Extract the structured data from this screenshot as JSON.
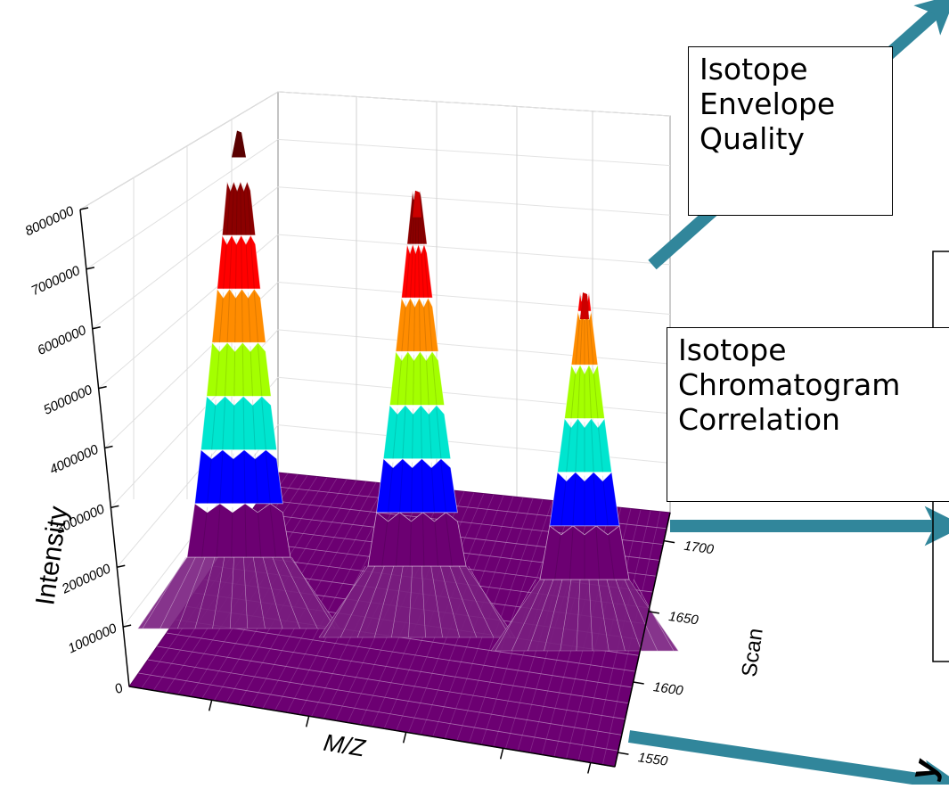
{
  "chart_data": {
    "type": "surface",
    "title": "",
    "xlabel": "M/Z",
    "ylabel": "Scan",
    "zlabel": "Intensity",
    "z_ticks": [
      "0",
      "1000000",
      "2000000",
      "3000000",
      "4000000",
      "5000000",
      "6000000",
      "7000000",
      "8000000"
    ],
    "z_range": [
      0,
      8000000
    ],
    "scan_ticks": [
      "1550",
      "1600",
      "1650",
      "1700"
    ],
    "scan_range": [
      1540,
      1720
    ],
    "grid": true,
    "colormap": [
      "#6c0072",
      "#0000ff",
      "#00e5cf",
      "#a4ff00",
      "#ff8c00",
      "#ff0000",
      "#8b0000"
    ],
    "series": [
      {
        "peak_intensity": 7950000
      },
      {
        "peak_intensity": 7000000
      },
      {
        "peak_intensity": 5350000
      }
    ]
  },
  "callouts": {
    "envelope": {
      "line1": "Isotope",
      "line2": "Envelope",
      "line3": "Quality"
    },
    "chromatogram": {
      "line1": "Isotope",
      "line2": "Chromatogram",
      "line3": "Correlation"
    },
    "partial_glyph": "y"
  },
  "colors": {
    "arrow": "#31869b",
    "floor": "#6c0072"
  }
}
